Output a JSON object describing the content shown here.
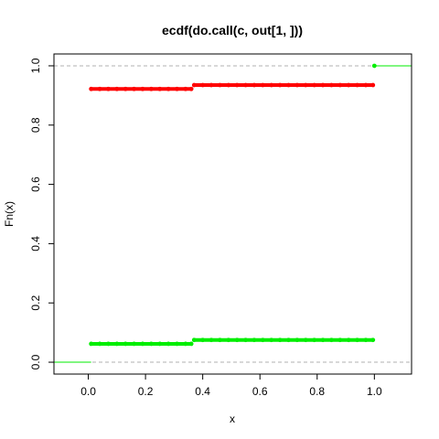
{
  "chart_data": {
    "type": "line",
    "title": "ecdf(do.call(c, out[1, ]))",
    "xlabel": "x",
    "ylabel": "Fn(x)",
    "xlim": [
      -0.12,
      1.13
    ],
    "ylim": [
      -0.04,
      1.04
    ],
    "x_ticks": [
      0.0,
      0.2,
      0.4,
      0.6,
      0.8,
      1.0
    ],
    "x_tick_labels": [
      "0.0",
      "0.2",
      "0.4",
      "0.6",
      "0.8",
      "1.0"
    ],
    "y_ticks": [
      0.0,
      0.2,
      0.4,
      0.6,
      0.8,
      1.0
    ],
    "y_tick_labels": [
      "0.0",
      "0.2",
      "0.4",
      "0.6",
      "0.8",
      "1.0"
    ],
    "reference_lines": [
      0,
      1
    ],
    "grid": false,
    "colors": {
      "red": "#ff0000",
      "green": "#00ee00",
      "reference": "#b0b0b0",
      "axis": "#000000"
    },
    "series": [
      {
        "color": "red",
        "points": [
          {
            "x": 0.01,
            "y": 0.922
          },
          {
            "x": 0.04,
            "y": 0.922
          },
          {
            "x": 0.07,
            "y": 0.922
          },
          {
            "x": 0.1,
            "y": 0.922
          },
          {
            "x": 0.13,
            "y": 0.922
          },
          {
            "x": 0.16,
            "y": 0.922
          },
          {
            "x": 0.19,
            "y": 0.922
          },
          {
            "x": 0.22,
            "y": 0.922
          },
          {
            "x": 0.25,
            "y": 0.922
          },
          {
            "x": 0.28,
            "y": 0.922
          },
          {
            "x": 0.31,
            "y": 0.922
          },
          {
            "x": 0.34,
            "y": 0.922
          },
          {
            "x": 0.36,
            "y": 0.922
          },
          {
            "x": 0.37,
            "y": 0.935
          },
          {
            "x": 0.4,
            "y": 0.935
          },
          {
            "x": 0.43,
            "y": 0.935
          },
          {
            "x": 0.46,
            "y": 0.935
          },
          {
            "x": 0.49,
            "y": 0.935
          },
          {
            "x": 0.52,
            "y": 0.935
          },
          {
            "x": 0.55,
            "y": 0.935
          },
          {
            "x": 0.58,
            "y": 0.935
          },
          {
            "x": 0.61,
            "y": 0.935
          },
          {
            "x": 0.64,
            "y": 0.935
          },
          {
            "x": 0.67,
            "y": 0.935
          },
          {
            "x": 0.7,
            "y": 0.935
          },
          {
            "x": 0.73,
            "y": 0.935
          },
          {
            "x": 0.76,
            "y": 0.935
          },
          {
            "x": 0.79,
            "y": 0.935
          },
          {
            "x": 0.82,
            "y": 0.935
          },
          {
            "x": 0.85,
            "y": 0.935
          },
          {
            "x": 0.88,
            "y": 0.935
          },
          {
            "x": 0.91,
            "y": 0.935
          },
          {
            "x": 0.94,
            "y": 0.935
          },
          {
            "x": 0.97,
            "y": 0.935
          },
          {
            "x": 0.995,
            "y": 0.935
          }
        ]
      },
      {
        "color": "green",
        "points": [
          {
            "x": 0.01,
            "y": 0.062
          },
          {
            "x": 0.04,
            "y": 0.062
          },
          {
            "x": 0.07,
            "y": 0.062
          },
          {
            "x": 0.1,
            "y": 0.062
          },
          {
            "x": 0.13,
            "y": 0.062
          },
          {
            "x": 0.16,
            "y": 0.062
          },
          {
            "x": 0.19,
            "y": 0.062
          },
          {
            "x": 0.22,
            "y": 0.062
          },
          {
            "x": 0.25,
            "y": 0.062
          },
          {
            "x": 0.28,
            "y": 0.062
          },
          {
            "x": 0.31,
            "y": 0.062
          },
          {
            "x": 0.34,
            "y": 0.062
          },
          {
            "x": 0.36,
            "y": 0.062
          },
          {
            "x": 0.37,
            "y": 0.075
          },
          {
            "x": 0.4,
            "y": 0.075
          },
          {
            "x": 0.43,
            "y": 0.075
          },
          {
            "x": 0.46,
            "y": 0.075
          },
          {
            "x": 0.49,
            "y": 0.075
          },
          {
            "x": 0.52,
            "y": 0.075
          },
          {
            "x": 0.55,
            "y": 0.075
          },
          {
            "x": 0.58,
            "y": 0.075
          },
          {
            "x": 0.61,
            "y": 0.075
          },
          {
            "x": 0.64,
            "y": 0.075
          },
          {
            "x": 0.67,
            "y": 0.075
          },
          {
            "x": 0.7,
            "y": 0.075
          },
          {
            "x": 0.73,
            "y": 0.075
          },
          {
            "x": 0.76,
            "y": 0.075
          },
          {
            "x": 0.79,
            "y": 0.075
          },
          {
            "x": 0.82,
            "y": 0.075
          },
          {
            "x": 0.85,
            "y": 0.075
          },
          {
            "x": 0.88,
            "y": 0.075
          },
          {
            "x": 0.91,
            "y": 0.075
          },
          {
            "x": 0.94,
            "y": 0.075
          },
          {
            "x": 0.97,
            "y": 0.075
          },
          {
            "x": 0.995,
            "y": 0.075
          },
          {
            "x": 1.0,
            "y": 1.0
          }
        ]
      }
    ],
    "tails": [
      {
        "color": "green",
        "x_from": -0.12,
        "x_to": 0.01,
        "y": 0
      },
      {
        "color": "green",
        "x_from": 1.0,
        "x_to": 1.13,
        "y": 1
      }
    ]
  }
}
